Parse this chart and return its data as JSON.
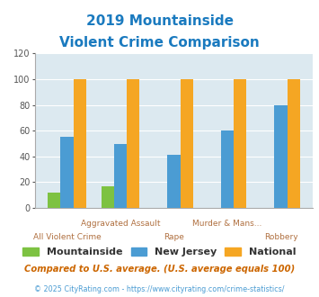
{
  "title_line1": "2019 Mountainside",
  "title_line2": "Violent Crime Comparison",
  "categories_top": [
    "",
    "Aggravated Assault",
    "",
    "Murder & Mans...",
    ""
  ],
  "categories_bot": [
    "All Violent Crime",
    "",
    "Rape",
    "",
    "Robbery"
  ],
  "mountainside": [
    12,
    17,
    0,
    0,
    0
  ],
  "new_jersey": [
    55,
    50,
    41,
    60,
    80
  ],
  "national": [
    100,
    100,
    100,
    100,
    100
  ],
  "colors": {
    "mountainside": "#7dc242",
    "new_jersey": "#4b9cd3",
    "national": "#f5a623"
  },
  "ylim": [
    0,
    120
  ],
  "yticks": [
    0,
    20,
    40,
    60,
    80,
    100,
    120
  ],
  "plot_bg": "#dce9f0",
  "title_color": "#1a7abf",
  "xtick_color": "#b07040",
  "ytick_color": "#555555",
  "grid_color": "#ffffff",
  "footer_text": "Compared to U.S. average. (U.S. average equals 100)",
  "footer2_text": "© 2025 CityRating.com - https://www.cityrating.com/crime-statistics/",
  "footer_color": "#cc6600",
  "footer2_color": "#4b9cd3",
  "legend_labels": [
    "Mountainside",
    "New Jersey",
    "National"
  ],
  "legend_text_color": "#333333"
}
